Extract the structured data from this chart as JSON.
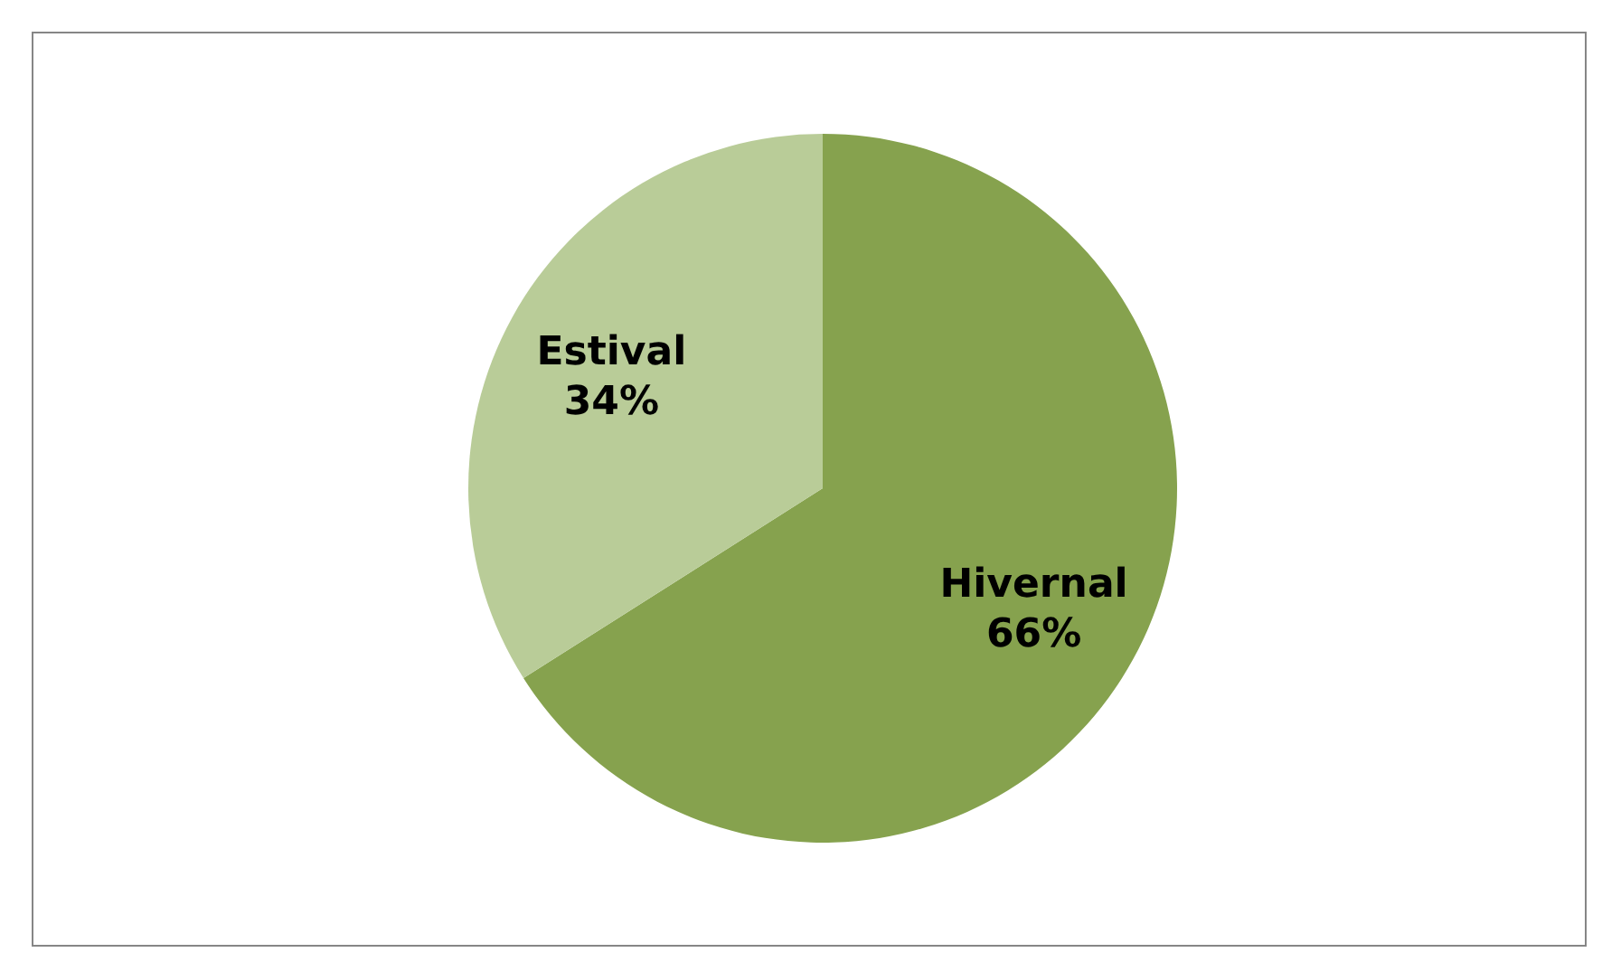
{
  "chart_data": {
    "type": "pie",
    "categories": [
      "Hivernal",
      "Estival"
    ],
    "values": [
      66,
      34
    ],
    "colors": [
      "#86a24e",
      "#b9cc98"
    ],
    "value_labels": [
      "66%",
      "34%"
    ]
  }
}
